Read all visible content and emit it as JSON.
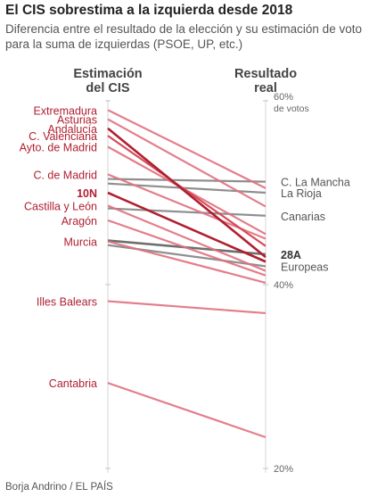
{
  "title": "El CIS sobrestima a la izquierda desde 2018",
  "subtitle": "Diferencia entre el resultado de la elección y su estimación de voto para la suma de izquierdas (PSOE, UP, etc.)",
  "source": "Borja Andrino / EL PAÍS",
  "colors": {
    "red": "#b01f30",
    "red_light": "#e0707e",
    "red_mid": "#d64a5a",
    "gray": "#8f8f8f",
    "gray_dark": "#6e6e6e"
  },
  "chart_data": {
    "type": "slope",
    "left_header": [
      "Estimación",
      "del CIS"
    ],
    "right_header": [
      "Resultado",
      "real"
    ],
    "y_ticks": [
      {
        "value": 60,
        "label": "60%",
        "sublabel": "de votos"
      },
      {
        "value": 40,
        "label": "40%"
      },
      {
        "value": 20,
        "label": "20%"
      }
    ],
    "ylim": [
      20,
      60
    ],
    "series": [
      {
        "name": "Extremadura",
        "label_side": "left",
        "cis": 59.0,
        "real": 50.5,
        "style": "red_light"
      },
      {
        "name": "Asturias",
        "label_side": "left",
        "cis": 58.0,
        "real": 48.5,
        "style": "red_light"
      },
      {
        "name": "Andalucía",
        "label_side": "left",
        "cis": 57.0,
        "real": 43.0,
        "style": "red"
      },
      {
        "name": "C. Valenciana",
        "label_side": "left",
        "cis": 56.2,
        "real": 44.2,
        "style": "red_mid"
      },
      {
        "name": "Ayto. de Madrid",
        "label_side": "left",
        "cis": 55.0,
        "real": 45.5,
        "style": "red_light"
      },
      {
        "name": "C. de Madrid",
        "label_side": "left",
        "cis": 52.0,
        "real": 45.0,
        "style": "red_light"
      },
      {
        "name": "C. La Mancha",
        "label_side": "right",
        "cis": 51.5,
        "real": 51.2,
        "style": "gray"
      },
      {
        "name": "La Rioja",
        "label_side": "right",
        "cis": 51.0,
        "real": 50.0,
        "style": "gray"
      },
      {
        "name": "10N",
        "label_side": "left",
        "cis": 50.0,
        "real": 42.5,
        "style": "red",
        "bold": true
      },
      {
        "name": "Castilla y León",
        "label_side": "left",
        "cis": 48.6,
        "real": 41.5,
        "style": "red_light"
      },
      {
        "name": "Canarias",
        "label_side": "right",
        "cis": 48.3,
        "real": 47.5,
        "style": "gray"
      },
      {
        "name": "Aragón",
        "label_side": "left",
        "cis": 47.0,
        "real": 41.0,
        "style": "red_light"
      },
      {
        "name": "Murcia",
        "label_side": "left",
        "cis": 44.7,
        "real": 40.2,
        "style": "red_light"
      },
      {
        "name": "28A",
        "label_side": "right",
        "cis": 44.8,
        "real": 43.3,
        "style": "gray_dark",
        "bold": true
      },
      {
        "name": "Europeas",
        "label_side": "right",
        "cis": 44.3,
        "real": 42.0,
        "style": "gray"
      },
      {
        "name": "Illes Balears",
        "label_side": "left",
        "cis": 38.2,
        "real": 36.9,
        "style": "red_light"
      },
      {
        "name": "Cantabria",
        "label_side": "left",
        "cis": 29.3,
        "real": 23.4,
        "style": "red_light"
      }
    ]
  }
}
